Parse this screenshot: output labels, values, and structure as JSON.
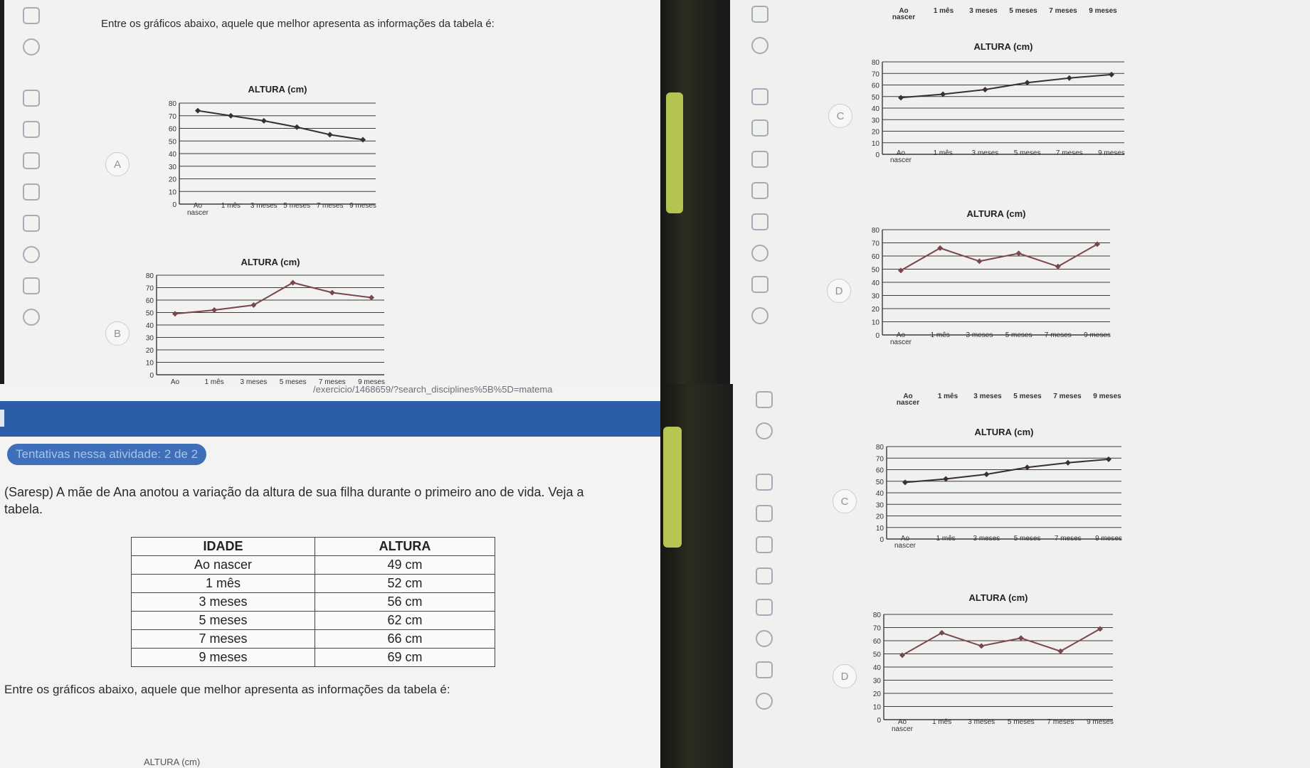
{
  "question": {
    "prompt": "Entre os gráficos abaixo, aquele que melhor apresenta as informações da tabela é:",
    "intro_line1": "(Saresp) A mãe de Ana anotou a variação da altura de sua filha durante o primeiro ano de vida. Veja a",
    "intro_line2": "tabela.",
    "attempts": "Tentativas nessa atividade: 2 de 2",
    "url": "/exercicio/1468659/?search_disciplines%5B%5D=matema"
  },
  "table": {
    "headers": [
      "IDADE",
      "ALTURA"
    ],
    "rows": [
      [
        "Ao nascer",
        "49 cm"
      ],
      [
        "1 mês",
        "52 cm"
      ],
      [
        "3 meses",
        "56 cm"
      ],
      [
        "5 meses",
        "62 cm"
      ],
      [
        "7 meses",
        "66 cm"
      ],
      [
        "9 meses",
        "69 cm"
      ]
    ]
  },
  "options": [
    "A",
    "B",
    "C",
    "D"
  ],
  "chart_data": [
    {
      "option": "A",
      "type": "line",
      "title": "ALTURA (cm)",
      "categories": [
        "Ao nascer",
        "1 mês",
        "3 meses",
        "5 meses",
        "7 meses",
        "9 meses"
      ],
      "values": [
        74,
        70,
        66,
        61,
        55,
        51
      ],
      "ylim": [
        0,
        80
      ],
      "yticks": [
        0,
        10,
        20,
        30,
        40,
        50,
        60,
        70,
        80
      ]
    },
    {
      "option": "B",
      "type": "line",
      "title": "ALTURA (cm)",
      "categories": [
        "Ao nascer",
        "1 mês",
        "3 meses",
        "5 meses",
        "7 meses",
        "9 meses"
      ],
      "values": [
        49,
        52,
        56,
        74,
        66,
        62
      ],
      "ylim": [
        0,
        80
      ],
      "yticks": [
        0,
        10,
        20,
        30,
        40,
        50,
        60,
        70,
        80
      ]
    },
    {
      "option": "C",
      "type": "line",
      "title": "ALTURA (cm)",
      "categories": [
        "Ao nascer",
        "1 mês",
        "3 meses",
        "5 meses",
        "7 meses",
        "9 meses"
      ],
      "values": [
        49,
        52,
        56,
        62,
        66,
        69
      ],
      "ylim": [
        0,
        80
      ],
      "yticks": [
        0,
        10,
        20,
        30,
        40,
        50,
        60,
        70,
        80
      ]
    },
    {
      "option": "D",
      "type": "line",
      "title": "ALTURA (cm)",
      "categories": [
        "Ao nascer",
        "1 mês",
        "3 meses",
        "5 meses",
        "7 meses",
        "9 meses"
      ],
      "values": [
        49,
        66,
        56,
        62,
        52,
        69
      ],
      "ylim": [
        0,
        80
      ],
      "yticks": [
        0,
        10,
        20,
        30,
        40,
        50,
        60,
        70,
        80
      ]
    }
  ],
  "bottom_partial_title": "ALTURA (cm)",
  "colors": {
    "line_dark": "#3a2f33",
    "line_mauve": "#7a4550",
    "grid": "#3b3b3b",
    "banner": "#2c5ea8"
  }
}
